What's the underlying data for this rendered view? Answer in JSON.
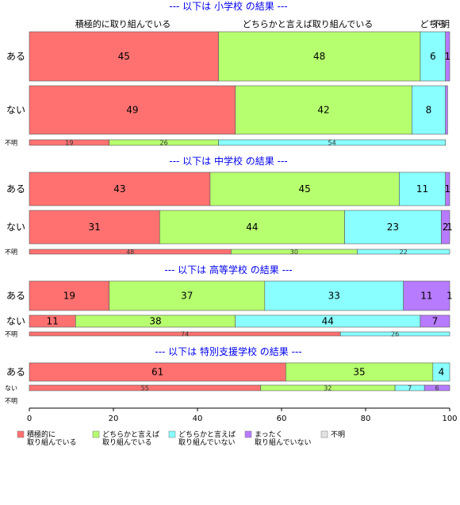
{
  "chart_data": {
    "type": "bar",
    "orientation": "horizontal",
    "stacked": "percent",
    "xlim": [
      0,
      100
    ],
    "xticks": [
      0,
      20,
      40,
      60,
      80,
      100
    ],
    "categories_legend": [
      {
        "label": "積極的に\n取り組んでいる",
        "color": "#ff7171"
      },
      {
        "label": "どちらかと言えば\n取り組んでいる",
        "color": "#b6ff6f"
      },
      {
        "label": "どちらかと言えば\n取り組んでいない",
        "color": "#89ffff"
      },
      {
        "label": "まったく\n取り組んでいない",
        "color": "#b77bff"
      },
      {
        "label": "不明",
        "color": "#e3e3e3"
      }
    ],
    "top_header_labels": [
      "積極的に取り組んでいる",
      "どちらかと言えば取り組んでいる",
      "どちら",
      "不明"
    ],
    "panels": [
      {
        "title": "--- 以下は 小学校 の結果 ---",
        "rows": [
          {
            "label": "ある",
            "values": [
              45,
              48,
              6,
              1,
              0
            ],
            "value_labels": [
              "45",
              "48",
              "6",
              "1",
              ""
            ]
          },
          {
            "label": "ない",
            "values": [
              49,
              42,
              8,
              0.5,
              0
            ],
            "value_labels": [
              "49",
              "42",
              "8",
              "",
              ""
            ]
          },
          {
            "label": "不明",
            "values": [
              19,
              26,
              54,
              0,
              0
            ],
            "value_labels": [
              "19",
              "26",
              "54",
              "",
              ""
            ],
            "small": true
          }
        ]
      },
      {
        "title": "--- 以下は 中学校 の結果 ---",
        "rows": [
          {
            "label": "ある",
            "values": [
              43,
              45,
              11,
              1,
              0
            ],
            "value_labels": [
              "43",
              "45",
              "11",
              "1",
              ""
            ]
          },
          {
            "label": "ない",
            "values": [
              31,
              44,
              23,
              2,
              0.5
            ],
            "value_labels": [
              "31",
              "44",
              "23",
              "2",
              "1"
            ]
          },
          {
            "label": "不明",
            "values": [
              48,
              30,
              22,
              0,
              0
            ],
            "value_labels": [
              "48",
              "30",
              "22",
              "",
              ""
            ],
            "small": true
          }
        ]
      },
      {
        "title": "--- 以下は 高等学校 の結果 ---",
        "rows": [
          {
            "label": "ある",
            "values": [
              19,
              37,
              33,
              11,
              0.5
            ],
            "value_labels": [
              "19",
              "37",
              "33",
              "11",
              "1"
            ]
          },
          {
            "label": "ない",
            "values": [
              11,
              38,
              44,
              7,
              0
            ],
            "value_labels": [
              "11",
              "38",
              "44",
              "7",
              ""
            ]
          },
          {
            "label": "不明",
            "values": [
              74,
              0,
              26,
              0,
              0
            ],
            "value_labels": [
              "74",
              "",
              "26",
              "",
              ""
            ],
            "small": true
          }
        ]
      },
      {
        "title": "--- 以下は 特別支援学校 の結果 ---",
        "rows": [
          {
            "label": "ある",
            "values": [
              61,
              35,
              4,
              0,
              0
            ],
            "value_labels": [
              "61",
              "35",
              "4",
              "",
              ""
            ]
          },
          {
            "label": "ない",
            "values": [
              55,
              32,
              7,
              6,
              0
            ],
            "value_labels": [
              "55",
              "32",
              "7",
              "6",
              ""
            ],
            "small": true
          },
          {
            "label": "不明",
            "values": [],
            "value_labels": [],
            "small": true
          }
        ]
      }
    ]
  }
}
